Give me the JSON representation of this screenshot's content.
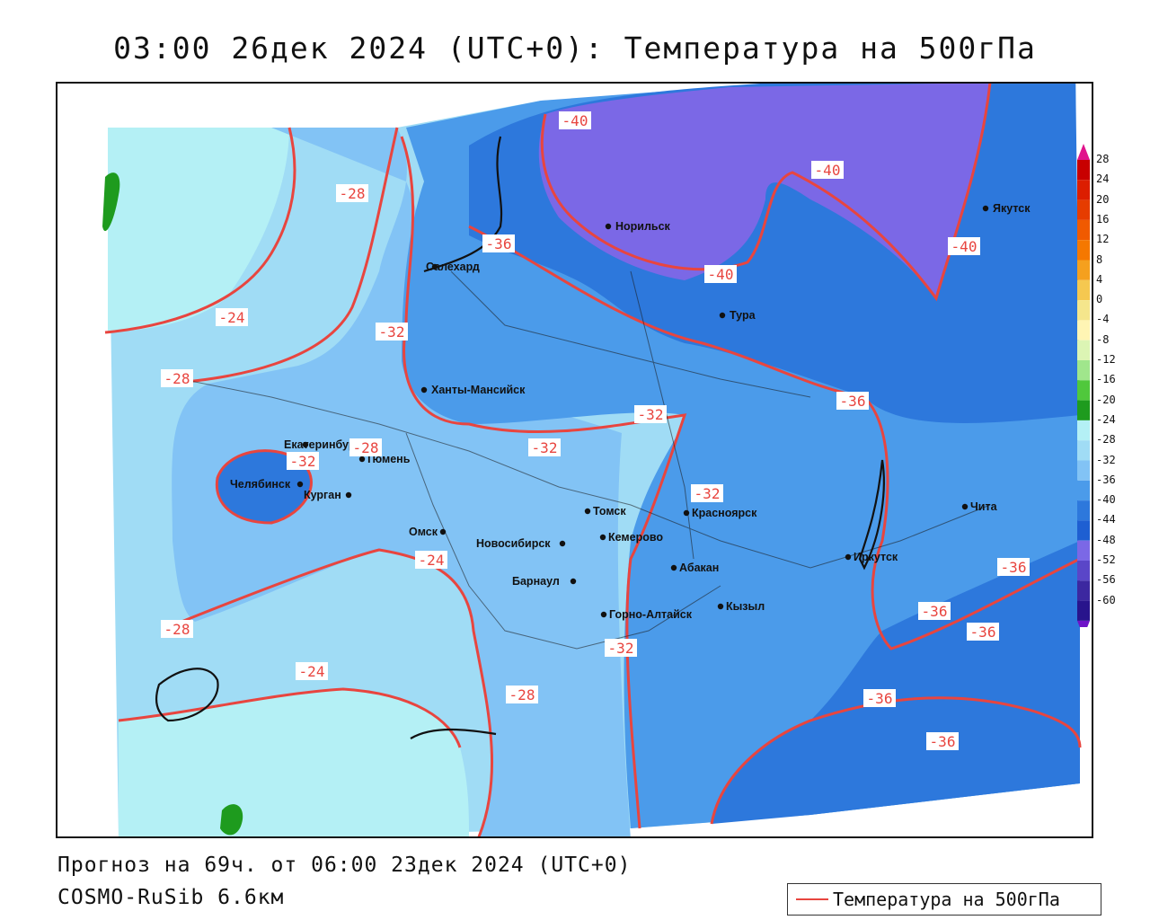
{
  "title": "03:00 26дек 2024 (UTC+0): Температура на 500гПа",
  "footer": {
    "forecast": "Прогноз на 69ч. от 06:00 23дек 2024 (UTC+0)",
    "model": "COSMO-RuSib 6.6км"
  },
  "legend": {
    "line_label": "Температура на 500гПа",
    "line_color": "#e8453f"
  },
  "colorbar": {
    "labels": [
      "28",
      "24",
      "20",
      "16",
      "12",
      "8",
      "4",
      "0",
      "-4",
      "-8",
      "-12",
      "-16",
      "-20",
      "-24",
      "-28",
      "-32",
      "-36",
      "-40",
      "-44",
      "-48",
      "-52",
      "-56",
      "-60"
    ],
    "colors": [
      "#c80000",
      "#dc1e00",
      "#e63c00",
      "#f05a00",
      "#f57800",
      "#f5a01e",
      "#f5c850",
      "#f5e68c",
      "#fff5b4",
      "#dcf5b4",
      "#a0e68c",
      "#50c83c",
      "#1e9b1e",
      "#b4f0f5",
      "#a0dcf5",
      "#82c3f5",
      "#4b9bea",
      "#2d78dc",
      "#1e5fd2",
      "#7b68e6",
      "#5a46c8",
      "#3c28a0",
      "#28148c"
    ]
  },
  "cities": [
    {
      "name": "Норильск"
    },
    {
      "name": "Якутск"
    },
    {
      "name": "Салехард"
    },
    {
      "name": "Тура"
    },
    {
      "name": "Ханты-Мансийск"
    },
    {
      "name": "Екатеринбург"
    },
    {
      "name": "Тюмень"
    },
    {
      "name": "Челябинск"
    },
    {
      "name": "Курган"
    },
    {
      "name": "Омск"
    },
    {
      "name": "Томск"
    },
    {
      "name": "Красноярск"
    },
    {
      "name": "Новосибирск"
    },
    {
      "name": "Кемерово"
    },
    {
      "name": "Барнаул"
    },
    {
      "name": "Абакан"
    },
    {
      "name": "Кызыл"
    },
    {
      "name": "Горно-Алтайск"
    },
    {
      "name": "Иркутск"
    },
    {
      "name": "Чита"
    }
  ],
  "contour_labels": [
    "-40",
    "-40",
    "-40",
    "-40",
    "-28",
    "-36",
    "-24",
    "-32",
    "-28",
    "-32",
    "-36",
    "-32",
    "-32",
    "-32",
    "-28",
    "-24",
    "-36",
    "-28",
    "-32",
    "-24",
    "-28",
    "-36",
    "-36",
    "-36",
    "-36"
  ]
}
